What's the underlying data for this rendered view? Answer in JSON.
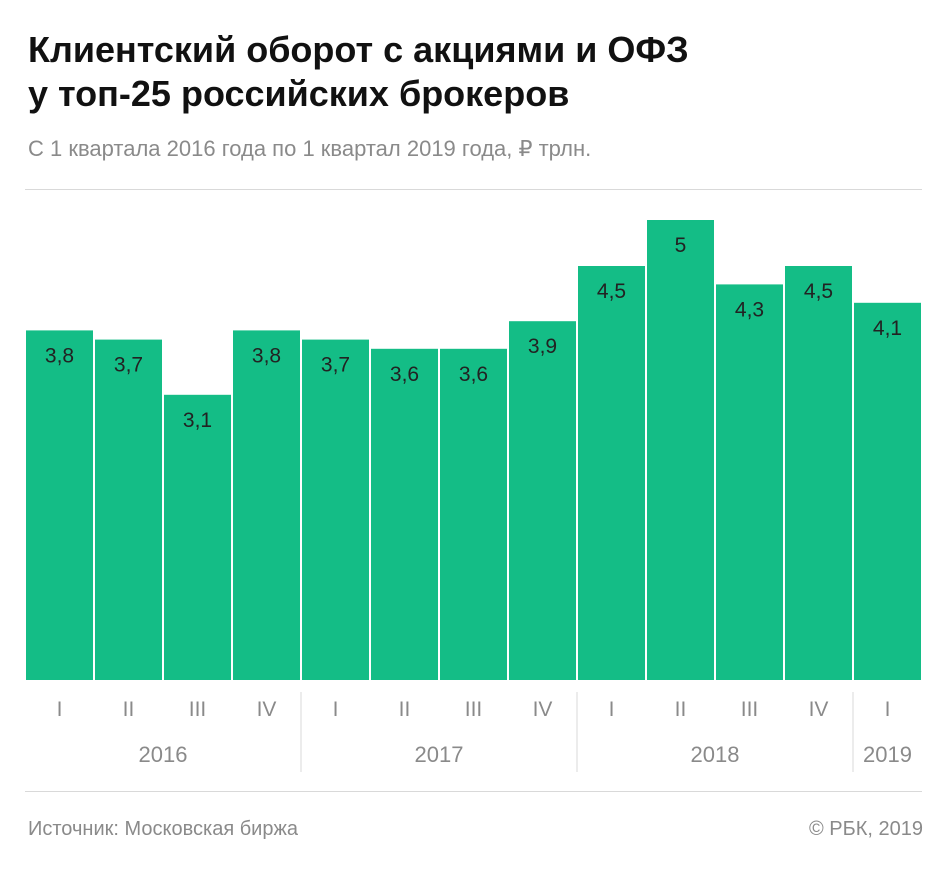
{
  "title_lines": [
    "Клиентский оборот с акциями и ОФЗ",
    "у топ-25 российских брокеров"
  ],
  "subtitle": "С 1 квартала 2016 года по 1 квартал 2019 года, ₽ трлн.",
  "footer": {
    "source": "Источник: Московская биржа",
    "copyright": "© РБК, 2019"
  },
  "colors": {
    "bar": "#14bd86",
    "label_text": "#222222",
    "axis_text": "#8a8a8a",
    "rule": "#d9d9d9"
  },
  "chart_data": {
    "type": "bar",
    "categories": [
      "I",
      "II",
      "III",
      "IV",
      "I",
      "II",
      "III",
      "IV",
      "I",
      "II",
      "III",
      "IV",
      "I"
    ],
    "year_groups": [
      {
        "label": "2016",
        "count": 4
      },
      {
        "label": "2017",
        "count": 4
      },
      {
        "label": "2018",
        "count": 4
      },
      {
        "label": "2019",
        "count": 1
      }
    ],
    "values": [
      3.8,
      3.7,
      3.1,
      3.8,
      3.7,
      3.6,
      3.6,
      3.9,
      4.5,
      5.0,
      4.3,
      4.5,
      4.1
    ],
    "value_labels": [
      "3,8",
      "3,7",
      "3,1",
      "3,8",
      "3,7",
      "3,6",
      "3,6",
      "3,9",
      "4,5",
      "5",
      "4,3",
      "4,5",
      "4,1"
    ],
    "ylim": [
      0,
      5
    ],
    "unit": "₽ трлн.",
    "grid": false,
    "legend": "none"
  }
}
